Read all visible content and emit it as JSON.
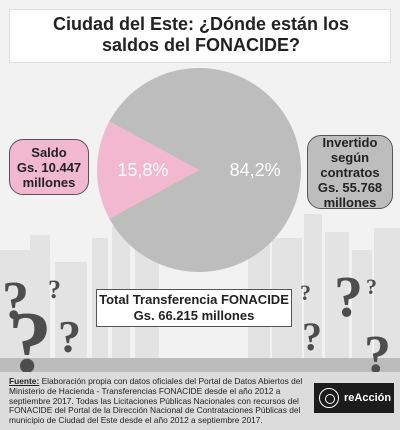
{
  "title": {
    "line1": "Ciudad del Este: ¿Dónde están los",
    "line2": "saldos del FONACIDE?"
  },
  "colors": {
    "saldo": "#f2b8cf",
    "invertido": "#bdbdbd",
    "background": "#f2f2f2",
    "skyline": "#e3e3e3",
    "question_marks": "#4d4d4d",
    "footer": "#dcdcdc"
  },
  "chart_data": {
    "type": "pie",
    "slices": [
      {
        "name": "Saldo",
        "value": 15.8,
        "label": "15,8%",
        "color": "#f2b8cf"
      },
      {
        "name": "Invertido según contratos",
        "value": 84.2,
        "label": "84,2%",
        "color": "#bdbdbd"
      }
    ]
  },
  "callouts": {
    "left": {
      "line1": "Saldo",
      "line2": "Gs. 10.447",
      "line3": "millones"
    },
    "right": {
      "line1": "Invertido",
      "line2": "según",
      "line3": "contratos",
      "line4": "Gs. 55.768",
      "line5": "millones"
    }
  },
  "total": {
    "line1": "Total Transferencia FONACIDE",
    "line2": "Gs. 66.215 millones"
  },
  "source": {
    "label": "Fuente:",
    "text": " Elaboración propia con datos oficiales del Portal de Datos Abiertos del Ministerio de Hacienda - Transferencias FONACIDE desde el año 2012 a septiembre 2017. Todas las Licitaciones Públicas Nacionales con recursos del FONACIDE del Portal de la Dirección Nacional de Contrataciones Públicas del municipio de Ciudad del Este desde el año 2012 a septiembre 2017."
  },
  "logo": {
    "name": "reAcción",
    "icon": "reaccion-logo-icon"
  }
}
